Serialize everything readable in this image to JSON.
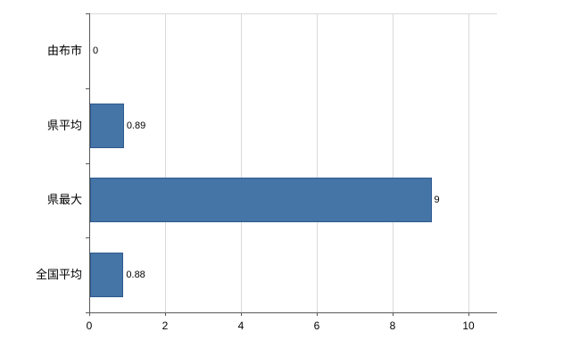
{
  "chart_data": {
    "type": "bar",
    "orientation": "horizontal",
    "title": "",
    "xlabel": "",
    "ylabel": "",
    "categories": [
      "由布市",
      "県平均",
      "県最大",
      "全国平均"
    ],
    "values": [
      0,
      0.89,
      9,
      0.88
    ],
    "value_labels": [
      "0",
      "0.89",
      "9",
      "0.88"
    ],
    "xlim": [
      0,
      10.75
    ],
    "xticks": [
      0,
      2,
      4,
      6,
      8,
      10
    ],
    "grid": "vertical-gridlines-plus-top-border",
    "legend": "none",
    "colors": {
      "bar_fill": "#4574a6",
      "bar_border": "#2e5a8f",
      "gridline": "#d9d9d9",
      "axis": "#595959",
      "text": "#000000",
      "background": "#ffffff"
    }
  }
}
